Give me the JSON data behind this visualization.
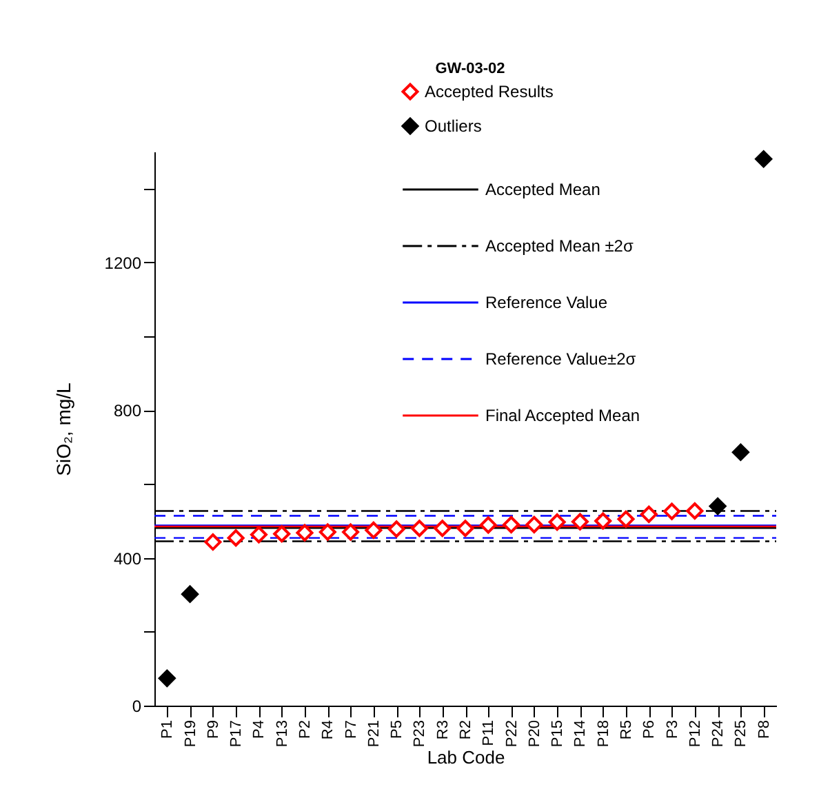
{
  "chart_data": {
    "type": "scatter",
    "legend_title": "GW-03-02",
    "xlabel": "Lab Code",
    "ylabel": "SiO₂, mg/L",
    "categories": [
      "P1",
      "P19",
      "P9",
      "P17",
      "P4",
      "P13",
      "P2",
      "R4",
      "P7",
      "P21",
      "P5",
      "P23",
      "R3",
      "R2",
      "P11",
      "P22",
      "P20",
      "P15",
      "P14",
      "P18",
      "R5",
      "P6",
      "P3",
      "P12",
      "P24",
      "P25",
      "P8"
    ],
    "series": [
      {
        "name": "Accepted Results",
        "color": "#ff0000",
        "marker": "diamond",
        "values": [
          null,
          null,
          443,
          454,
          463,
          465,
          468,
          470,
          470,
          475,
          478,
          480,
          480,
          480,
          489,
          490,
          490,
          497,
          498,
          500,
          505,
          518,
          526,
          527,
          null,
          null,
          null
        ]
      },
      {
        "name": "Outliers",
        "color": "#000000",
        "marker": "diamond",
        "values": [
          74,
          302,
          null,
          null,
          null,
          null,
          null,
          null,
          null,
          null,
          null,
          null,
          null,
          null,
          null,
          null,
          null,
          null,
          null,
          null,
          null,
          null,
          null,
          null,
          540,
          686,
          1480
        ]
      }
    ],
    "ref_lines": [
      {
        "axis": "y",
        "value": 481,
        "label": "Accepted Mean",
        "color": "#000000",
        "line_style": "solid"
      },
      {
        "axis": "y",
        "value": 527,
        "label": "Accepted Mean ±2σ",
        "color": "#000000",
        "line_style": "dashdot"
      },
      {
        "axis": "y",
        "value": 445,
        "color": "#000000",
        "line_style": "dashdot"
      },
      {
        "axis": "y",
        "value": 488,
        "label": "Reference Value",
        "color": "#0000ff",
        "line_style": "solid"
      },
      {
        "axis": "y",
        "value": 514,
        "label": "Reference Value±2σ",
        "color": "#0000ff",
        "line_style": "dashed"
      },
      {
        "axis": "y",
        "value": 454,
        "color": "#0000ff",
        "line_style": "dashed"
      },
      {
        "axis": "y",
        "value": 485,
        "label": "Final Accepted Mean",
        "color": "#ff0000",
        "line_style": "solid"
      }
    ],
    "ylim": [
      0,
      1500
    ],
    "yticks": [
      0,
      {
        "value": 200,
        "label": null
      },
      400,
      {
        "value": 600,
        "label": null
      },
      800,
      {
        "value": 1000,
        "label": null
      },
      1200,
      {
        "value": 1400,
        "label": null
      }
    ],
    "grid": false,
    "legend": "top right"
  }
}
